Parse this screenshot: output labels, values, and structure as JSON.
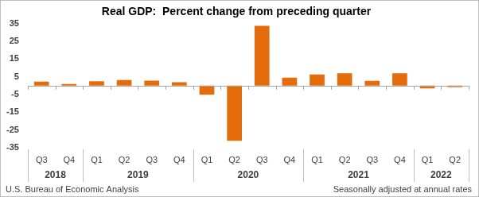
{
  "chart_data": {
    "type": "bar",
    "title": "Real GDP:  Percent change from preceding quarter",
    "categories": [
      "Q3",
      "Q4",
      "Q1",
      "Q2",
      "Q3",
      "Q4",
      "Q1",
      "Q2",
      "Q3",
      "Q4",
      "Q1",
      "Q2",
      "Q3",
      "Q4",
      "Q1",
      "Q2"
    ],
    "years": [
      "2018",
      "2018",
      "2019",
      "2019",
      "2019",
      "2019",
      "2020",
      "2020",
      "2020",
      "2020",
      "2021",
      "2021",
      "2021",
      "2021",
      "2022",
      "2022"
    ],
    "values": [
      2.3,
      0.9,
      2.5,
      3.2,
      2.8,
      1.9,
      -5.1,
      -31.2,
      33.8,
      4.5,
      6.3,
      7.0,
      2.7,
      7.0,
      -1.6,
      -0.9
    ],
    "color": "#e46c0a",
    "ylim": [
      -35,
      35
    ],
    "yticks": [
      -35,
      -25,
      -15,
      -5,
      5,
      15,
      25,
      35
    ],
    "grid": false,
    "source": "U.S. Bureau of Economic Analysis",
    "note": "Seasonally adjusted at annual rates"
  }
}
